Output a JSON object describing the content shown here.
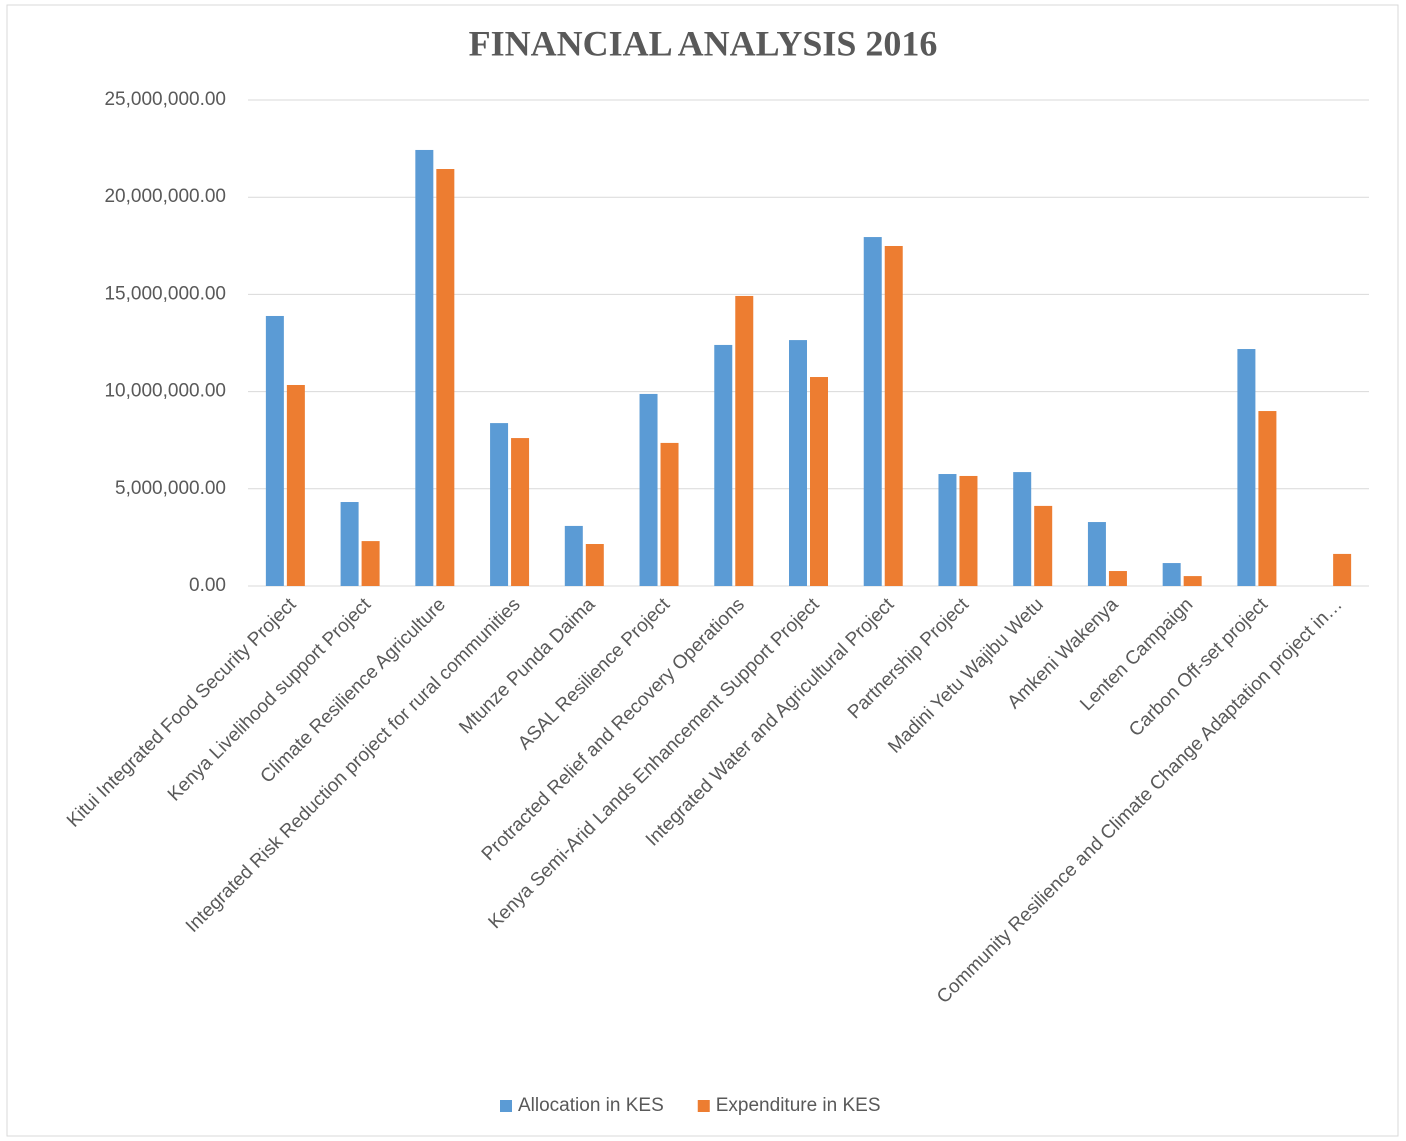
{
  "chart_data": {
    "type": "bar",
    "title": "FINANCIAL ANALYSIS 2016",
    "categories": [
      "Kitui Integrated Food Security Project",
      "Kenya Livelihood support Project",
      "Climate Resilience Agriculture",
      "Integrated Risk Reduction project for rural communities",
      "Mtunze Punda Daima",
      "ASAL Resilience Project",
      "Protracted Relief and Recovery Operations",
      "Kenya Semi-Arid Lands Enhancement Support Project",
      "Integrated Water and Agricultural Project",
      "Partnership Project",
      "Madini Yetu Wajibu Wetu",
      "Amkeni Wakenya",
      "Lenten Campaign",
      "Carbon Off-set project",
      "Community Resilience and Climate Change Adaptation project in…"
    ],
    "series": [
      {
        "name": "Allocation in KES",
        "color": "#5b9bd5",
        "values": [
          13890000,
          4320000,
          22430000,
          8380000,
          3090000,
          9880000,
          12400000,
          12650000,
          17950000,
          5760000,
          5860000,
          3290000,
          1180000,
          12190000,
          null
        ]
      },
      {
        "name": "Expenditure in KES",
        "color": "#ed7d31",
        "values": [
          10340000,
          2310000,
          21450000,
          7610000,
          2160000,
          7360000,
          14920000,
          10750000,
          17490000,
          5660000,
          4120000,
          770000,
          510000,
          9000000,
          1650000
        ]
      }
    ],
    "ylim": [
      0,
      25000000
    ],
    "yticks": [
      {
        "value": 0,
        "label": "0.00"
      },
      {
        "value": 5000000,
        "label": "5,000,000.00"
      },
      {
        "value": 10000000,
        "label": "10,000,000.00"
      },
      {
        "value": 15000000,
        "label": "15,000,000.00"
      },
      {
        "value": 20000000,
        "label": "20,000,000.00"
      },
      {
        "value": 25000000,
        "label": "25,000,000.00"
      }
    ],
    "grid": true,
    "legend": "bottom"
  }
}
